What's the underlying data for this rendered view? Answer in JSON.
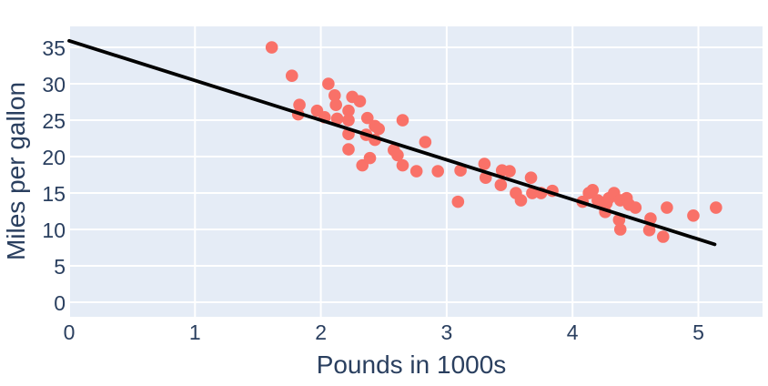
{
  "chart_data": {
    "type": "scatter",
    "title": "",
    "xlabel": "Pounds in 1000s",
    "ylabel": "Miles per gallon",
    "x_range": [
      0,
      5.51
    ],
    "y_range": [
      -2,
      37.88
    ],
    "x_ticks": [
      0,
      1,
      2,
      3,
      4,
      5
    ],
    "y_ticks": [
      0,
      5,
      10,
      15,
      20,
      25,
      30,
      35
    ],
    "grid": true,
    "legend": false,
    "colors": {
      "plot_background": "#e5ecf6",
      "grid_line": "#ffffff",
      "marker": "#f97168",
      "regression_line": "#000000",
      "text": "#2a3f5f",
      "figure_background": "#ffffff"
    },
    "marker_radius": 6.8,
    "regression_line": {
      "x": [
        0,
        5.13
      ],
      "y": [
        35.9,
        7.95
      ]
    },
    "points": [
      [
        1.61,
        35.0
      ],
      [
        1.77,
        31.1
      ],
      [
        1.82,
        25.8
      ],
      [
        1.83,
        27.1
      ],
      [
        1.97,
        26.3
      ],
      [
        2.03,
        25.4
      ],
      [
        2.06,
        30.0
      ],
      [
        2.11,
        28.4
      ],
      [
        2.12,
        27.1
      ],
      [
        2.13,
        25.2
      ],
      [
        2.22,
        26.3
      ],
      [
        2.22,
        25.0
      ],
      [
        2.22,
        23.1
      ],
      [
        2.22,
        21.0
      ],
      [
        2.25,
        28.2
      ],
      [
        2.31,
        27.6
      ],
      [
        2.33,
        18.8
      ],
      [
        2.36,
        23.0
      ],
      [
        2.37,
        25.3
      ],
      [
        2.39,
        19.8
      ],
      [
        2.43,
        24.2
      ],
      [
        2.43,
        22.3
      ],
      [
        2.46,
        23.8
      ],
      [
        2.58,
        20.9
      ],
      [
        2.61,
        20.2
      ],
      [
        2.65,
        25.0
      ],
      [
        2.65,
        18.8
      ],
      [
        2.76,
        18.0
      ],
      [
        2.83,
        22.0
      ],
      [
        2.93,
        18.0
      ],
      [
        3.09,
        13.8
      ],
      [
        3.11,
        18.1
      ],
      [
        3.3,
        19.0
      ],
      [
        3.31,
        17.1
      ],
      [
        3.43,
        16.1
      ],
      [
        3.44,
        18.1
      ],
      [
        3.5,
        18.0
      ],
      [
        3.55,
        15.0
      ],
      [
        3.59,
        14.0
      ],
      [
        3.67,
        17.1
      ],
      [
        3.68,
        15.0
      ],
      [
        3.75,
        15.0
      ],
      [
        3.84,
        15.3
      ],
      [
        4.08,
        13.8
      ],
      [
        4.13,
        15.0
      ],
      [
        4.16,
        15.4
      ],
      [
        4.2,
        14.0
      ],
      [
        4.23,
        13.7
      ],
      [
        4.26,
        12.4
      ],
      [
        4.27,
        13.6
      ],
      [
        4.29,
        14.3
      ],
      [
        4.33,
        15.0
      ],
      [
        4.37,
        11.3
      ],
      [
        4.38,
        14.0
      ],
      [
        4.38,
        10.0
      ],
      [
        4.43,
        14.3
      ],
      [
        4.45,
        13.4
      ],
      [
        4.5,
        13.0
      ],
      [
        4.61,
        9.9
      ],
      [
        4.62,
        11.5
      ],
      [
        4.72,
        9.0
      ],
      [
        4.75,
        13.0
      ],
      [
        4.96,
        11.9
      ],
      [
        5.14,
        13.0
      ]
    ]
  }
}
